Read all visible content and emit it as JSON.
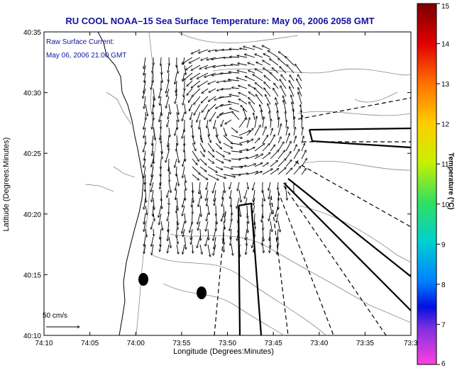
{
  "title": "RU COOL  NOAA–15  Sea Surface Temperature:  May 06, 2006 2058 GMT",
  "annotation": {
    "line1": "Raw Surface Current:",
    "line2": "May 06, 2006 21:00 GMT"
  },
  "scale_label": "50 cm/s",
  "axes": {
    "xlabel": "Longitude (Degrees:Minutes)",
    "ylabel": "Latitude (Degrees:Minutes)",
    "x_ticks": [
      "74:10",
      "74:05",
      "74:00",
      "73:55",
      "73:50",
      "73:45",
      "73:40",
      "73:35",
      "73:3"
    ],
    "y_ticks": [
      "40:35",
      "40:30",
      "40:25",
      "40:20",
      "40:15",
      "40:10"
    ]
  },
  "colorbar": {
    "label": "Temperature (°C)",
    "ticks": [
      "15",
      "14",
      "13",
      "12",
      "11",
      "10",
      "9",
      "8",
      "7",
      "6"
    ],
    "min": 6,
    "max": 15
  }
}
